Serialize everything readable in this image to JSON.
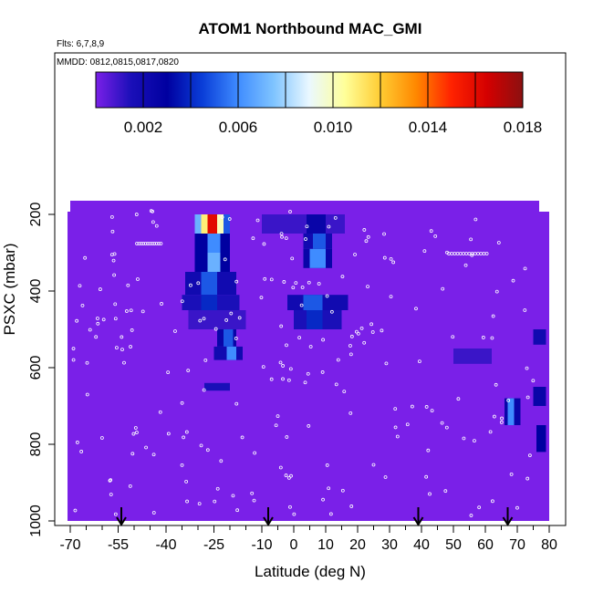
{
  "chart_data": {
    "type": "heatmap",
    "title": "ATOM1 Northbound MAC_GMI",
    "subtitle_flights": "Flts: 6,7,8,9",
    "subtitle_dates": "MMDD: 0812,0815,0817,0820",
    "xlabel": "Latitude (deg N)",
    "ylabel": "PSXC (mbar)",
    "xlim": [
      -70,
      82
    ],
    "ylim": [
      1000,
      140
    ],
    "x_ticks": [
      -70,
      -55,
      -40,
      -25,
      -10,
      0,
      10,
      20,
      30,
      40,
      50,
      60,
      70,
      80
    ],
    "x_minor_ticks": [
      -65,
      -60,
      -50,
      -45,
      -35,
      -30,
      -20,
      -15,
      -5,
      5,
      15,
      25,
      35,
      45,
      55,
      65,
      75
    ],
    "y_ticks": [
      200,
      400,
      600,
      800,
      1000
    ],
    "colorbar": {
      "range": [
        0,
        0.018
      ],
      "tick_values": [
        0.002,
        0.006,
        0.01,
        0.014,
        0.018
      ],
      "tick_labels": [
        "0.002",
        "0.006",
        "0.010",
        "0.014",
        "0.018"
      ],
      "stops": [
        "#7a20e8",
        "#1a0fb8",
        "#0000a0",
        "#0a3ed8",
        "#3f8cff",
        "#7fc4ff",
        "#eaf8ff",
        "#ffff99",
        "#ffcc33",
        "#ff8800",
        "#ff2200",
        "#d40000",
        "#8b1010"
      ]
    },
    "background_value": 0.0,
    "arrows_latitude": [
      -54,
      -8,
      39,
      67
    ],
    "cells": [
      {
        "lat": [
          -27,
          -24
        ],
        "p": [
          200,
          250
        ],
        "v": 0.016
      },
      {
        "lat": [
          -24,
          -22
        ],
        "p": [
          200,
          250
        ],
        "v": 0.01
      },
      {
        "lat": [
          -29,
          -27
        ],
        "p": [
          200,
          250
        ],
        "v": 0.011
      },
      {
        "lat": [
          -31,
          -29
        ],
        "p": [
          200,
          250
        ],
        "v": 0.007
      },
      {
        "lat": [
          -22,
          -20
        ],
        "p": [
          200,
          250
        ],
        "v": 0.005
      },
      {
        "lat": [
          -31,
          -20
        ],
        "p": [
          250,
          300
        ],
        "v": 0.003
      },
      {
        "lat": [
          -27,
          -23
        ],
        "p": [
          250,
          300
        ],
        "v": 0.006
      },
      {
        "lat": [
          -31,
          -20
        ],
        "p": [
          300,
          350
        ],
        "v": 0.003
      },
      {
        "lat": [
          -27,
          -23
        ],
        "p": [
          300,
          350
        ],
        "v": 0.007
      },
      {
        "lat": [
          -34,
          -18
        ],
        "p": [
          350,
          410
        ],
        "v": 0.002
      },
      {
        "lat": [
          -29,
          -24
        ],
        "p": [
          350,
          410
        ],
        "v": 0.005
      },
      {
        "lat": [
          -35,
          -17
        ],
        "p": [
          410,
          450
        ],
        "v": 0.0015
      },
      {
        "lat": [
          -29,
          -24
        ],
        "p": [
          410,
          450
        ],
        "v": 0.004
      },
      {
        "lat": [
          -33,
          -15
        ],
        "p": [
          450,
          500
        ],
        "v": 0.001
      },
      {
        "lat": [
          -24,
          -18
        ],
        "p": [
          500,
          545
        ],
        "v": 0.0025
      },
      {
        "lat": [
          -22,
          -19
        ],
        "p": [
          500,
          545
        ],
        "v": 0.005
      },
      {
        "lat": [
          -25,
          -16
        ],
        "p": [
          545,
          580
        ],
        "v": 0.002
      },
      {
        "lat": [
          -21,
          -18
        ],
        "p": [
          545,
          580
        ],
        "v": 0.006
      },
      {
        "lat": [
          -28,
          -20
        ],
        "p": [
          640,
          660
        ],
        "v": 0.0015
      },
      {
        "lat": [
          -10,
          16
        ],
        "p": [
          200,
          250
        ],
        "v": 0.001
      },
      {
        "lat": [
          4,
          10
        ],
        "p": [
          200,
          250
        ],
        "v": 0.0025
      },
      {
        "lat": [
          3,
          12
        ],
        "p": [
          250,
          290
        ],
        "v": 0.002
      },
      {
        "lat": [
          6,
          10
        ],
        "p": [
          250,
          290
        ],
        "v": 0.005
      },
      {
        "lat": [
          3,
          12
        ],
        "p": [
          290,
          340
        ],
        "v": 0.0025
      },
      {
        "lat": [
          5,
          10
        ],
        "p": [
          290,
          340
        ],
        "v": 0.006
      },
      {
        "lat": [
          -2,
          17
        ],
        "p": [
          410,
          450
        ],
        "v": 0.002
      },
      {
        "lat": [
          3,
          9
        ],
        "p": [
          410,
          450
        ],
        "v": 0.005
      },
      {
        "lat": [
          0,
          15
        ],
        "p": [
          450,
          500
        ],
        "v": 0.0015
      },
      {
        "lat": [
          4,
          9
        ],
        "p": [
          450,
          500
        ],
        "v": 0.004
      },
      {
        "lat": [
          66,
          71
        ],
        "p": [
          680,
          750
        ],
        "v": 0.0025
      },
      {
        "lat": [
          67,
          69
        ],
        "p": [
          680,
          750
        ],
        "v": 0.006
      },
      {
        "lat": [
          75,
          79
        ],
        "p": [
          650,
          700
        ],
        "v": 0.0025
      },
      {
        "lat": [
          76,
          79
        ],
        "p": [
          750,
          820
        ],
        "v": 0.003
      },
      {
        "lat": [
          50,
          62
        ],
        "p": [
          550,
          590
        ],
        "v": 0.001
      },
      {
        "lat": [
          75,
          79
        ],
        "p": [
          500,
          540
        ],
        "v": 0.002
      }
    ]
  }
}
